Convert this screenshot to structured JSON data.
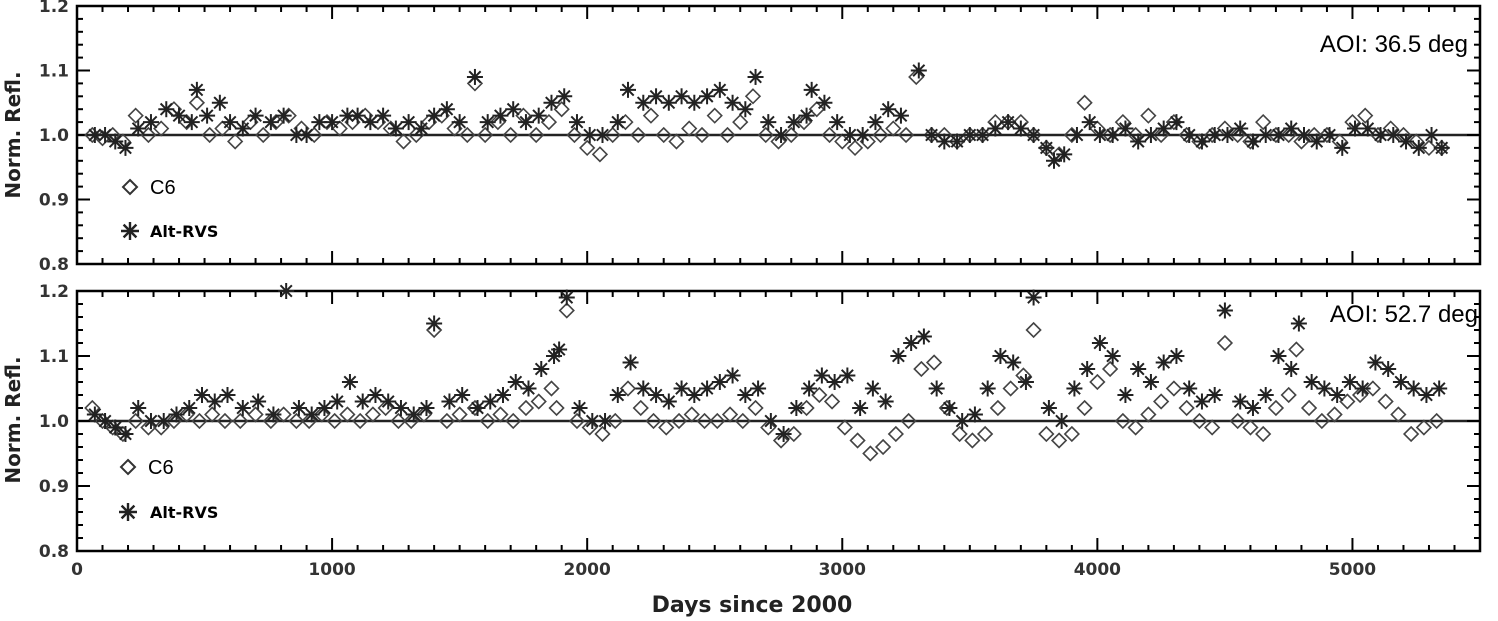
{
  "figure": {
    "shared_xlabel": "Days since 2000"
  },
  "chart_data": [
    {
      "type": "scatter",
      "ylabel": "Norm. Refl.",
      "annotation": "AOI: 36.5 deg",
      "xlim": [
        0,
        5500
      ],
      "ylim": [
        0.8,
        1.2
      ],
      "xticks": [
        0,
        1000,
        2000,
        3000,
        4000,
        5000
      ],
      "yticks": [
        0.8,
        0.9,
        1.0,
        1.1,
        1.2
      ],
      "ytick_labels": [
        "0.8",
        "0.9",
        "1.0",
        "1.1",
        "1.2"
      ],
      "reference_line": 1.0,
      "legend": {
        "placement": "lower-left",
        "entries": [
          "C6",
          "Alt-RVS"
        ]
      },
      "series": [
        {
          "name": "C6",
          "marker": "diamond",
          "x": [
            60,
            100,
            140,
            180,
            230,
            280,
            330,
            380,
            430,
            470,
            520,
            570,
            620,
            680,
            730,
            780,
            830,
            880,
            930,
            980,
            1030,
            1080,
            1130,
            1180,
            1230,
            1280,
            1330,
            1380,
            1430,
            1480,
            1530,
            1560,
            1600,
            1650,
            1700,
            1750,
            1800,
            1850,
            1900,
            1950,
            2000,
            2050,
            2100,
            2150,
            2200,
            2250,
            2300,
            2350,
            2400,
            2450,
            2500,
            2550,
            2600,
            2650,
            2700,
            2750,
            2800,
            2850,
            2900,
            2950,
            3000,
            3050,
            3100,
            3150,
            3200,
            3250,
            3290,
            3350,
            3400,
            3450,
            3500,
            3550,
            3600,
            3650,
            3700,
            3750,
            3800,
            3850,
            3900,
            3950,
            4000,
            4050,
            4100,
            4150,
            4200,
            4250,
            4300,
            4350,
            4400,
            4450,
            4500,
            4550,
            4600,
            4650,
            4700,
            4750,
            4800,
            4850,
            4900,
            4950,
            5000,
            5050,
            5100,
            5150,
            5200,
            5250,
            5300,
            5350
          ],
          "y": [
            1.0,
            0.995,
            1.0,
            0.99,
            1.03,
            1.0,
            1.01,
            1.04,
            1.02,
            1.05,
            1.0,
            1.01,
            0.99,
            1.02,
            1.0,
            1.02,
            1.03,
            1.01,
            1.0,
            1.02,
            1.01,
            1.02,
            1.03,
            1.02,
            1.01,
            0.99,
            1.0,
            1.02,
            1.03,
            1.01,
            1.0,
            1.08,
            1.0,
            1.02,
            1.0,
            1.03,
            1.0,
            1.02,
            1.04,
            1.0,
            0.98,
            0.97,
            1.0,
            1.02,
            1.0,
            1.03,
            1.0,
            0.99,
            1.01,
            1.0,
            1.03,
            1.0,
            1.02,
            1.06,
            1.0,
            0.99,
            1.0,
            1.02,
            1.04,
            1.0,
            0.99,
            0.98,
            0.99,
            1.0,
            1.01,
            1.0,
            1.09,
            1.0,
            1.0,
            0.99,
            1.0,
            1.0,
            1.02,
            1.02,
            1.02,
            1.0,
            0.98,
            0.97,
            1.0,
            1.05,
            1.01,
            1.0,
            1.02,
            1.0,
            1.03,
            1.0,
            1.02,
            1.0,
            0.99,
            1.0,
            1.01,
            1.0,
            0.99,
            1.02,
            1.0,
            1.0,
            0.99,
            1.0,
            1.0,
            0.99,
            1.02,
            1.03,
            1.0,
            1.01,
            1.0,
            0.99,
            0.98,
            0.98
          ]
        },
        {
          "name": "Alt-RVS",
          "marker": "asterisk",
          "x": [
            70,
            110,
            150,
            190,
            240,
            290,
            350,
            400,
            450,
            470,
            510,
            560,
            600,
            650,
            700,
            760,
            810,
            860,
            900,
            950,
            1000,
            1060,
            1100,
            1150,
            1200,
            1250,
            1300,
            1350,
            1400,
            1450,
            1500,
            1560,
            1610,
            1660,
            1710,
            1760,
            1810,
            1860,
            1910,
            1960,
            2010,
            2060,
            2120,
            2160,
            2220,
            2270,
            2320,
            2370,
            2420,
            2470,
            2520,
            2570,
            2620,
            2660,
            2710,
            2760,
            2810,
            2860,
            2880,
            2930,
            2980,
            3030,
            3080,
            3130,
            3180,
            3230,
            3300,
            3350,
            3400,
            3450,
            3500,
            3550,
            3600,
            3650,
            3700,
            3750,
            3800,
            3830,
            3870,
            3920,
            3970,
            4010,
            4060,
            4110,
            4160,
            4210,
            4260,
            4310,
            4360,
            4410,
            4460,
            4510,
            4560,
            4610,
            4660,
            4710,
            4760,
            4810,
            4860,
            4910,
            4960,
            5010,
            5060,
            5110,
            5160,
            5210,
            5260,
            5310,
            5350
          ],
          "y": [
            1.0,
            1.0,
            0.99,
            0.98,
            1.01,
            1.02,
            1.04,
            1.03,
            1.02,
            1.07,
            1.03,
            1.05,
            1.02,
            1.01,
            1.03,
            1.02,
            1.03,
            1.0,
            1.0,
            1.02,
            1.02,
            1.03,
            1.03,
            1.02,
            1.03,
            1.01,
            1.02,
            1.01,
            1.03,
            1.04,
            1.02,
            1.09,
            1.02,
            1.03,
            1.04,
            1.02,
            1.03,
            1.05,
            1.06,
            1.02,
            1.0,
            1.0,
            1.02,
            1.07,
            1.05,
            1.06,
            1.05,
            1.06,
            1.05,
            1.06,
            1.07,
            1.05,
            1.04,
            1.09,
            1.02,
            1.0,
            1.02,
            1.03,
            1.07,
            1.05,
            1.02,
            1.0,
            1.0,
            1.02,
            1.04,
            1.03,
            1.1,
            1.0,
            0.99,
            0.99,
            1.0,
            1.0,
            1.01,
            1.02,
            1.01,
            1.0,
            0.98,
            0.96,
            0.97,
            1.0,
            1.02,
            1.0,
            1.0,
            1.01,
            0.99,
            1.0,
            1.01,
            1.02,
            1.0,
            0.99,
            1.0,
            1.0,
            1.01,
            0.99,
            1.0,
            1.0,
            1.01,
            1.0,
            0.99,
            1.0,
            0.98,
            1.01,
            1.01,
            1.0,
            1.0,
            0.99,
            0.98,
            1.0,
            0.98
          ]
        }
      ]
    },
    {
      "type": "scatter",
      "ylabel": "Norm. Refl.",
      "annotation": "AOI: 52.7 deg",
      "xlim": [
        0,
        5500
      ],
      "ylim": [
        0.8,
        1.2
      ],
      "xticks": [
        0,
        1000,
        2000,
        3000,
        4000,
        5000
      ],
      "xtick_labels": [
        "0",
        "1000",
        "2000",
        "3000",
        "4000",
        "5000"
      ],
      "yticks": [
        0.8,
        0.9,
        1.0,
        1.1,
        1.2
      ],
      "ytick_labels": [
        "0.8",
        "0.9",
        "1.0",
        "1.1",
        "1.2"
      ],
      "reference_line": 1.0,
      "legend": {
        "placement": "lower-left",
        "entries": [
          "C6",
          "Alt-RVS"
        ]
      },
      "series": [
        {
          "name": "C6",
          "marker": "diamond",
          "x": [
            60,
            100,
            140,
            180,
            230,
            280,
            330,
            380,
            430,
            480,
            530,
            580,
            640,
            700,
            760,
            810,
            860,
            910,
            960,
            1010,
            1060,
            1110,
            1160,
            1210,
            1260,
            1310,
            1360,
            1400,
            1450,
            1500,
            1560,
            1610,
            1660,
            1710,
            1760,
            1810,
            1860,
            1880,
            1920,
            1960,
            2010,
            2060,
            2110,
            2160,
            2210,
            2260,
            2310,
            2360,
            2410,
            2460,
            2510,
            2560,
            2610,
            2660,
            2710,
            2760,
            2810,
            2860,
            2910,
            2960,
            3010,
            3060,
            3110,
            3160,
            3210,
            3260,
            3310,
            3360,
            3410,
            3460,
            3510,
            3560,
            3610,
            3660,
            3710,
            3750,
            3800,
            3850,
            3900,
            3950,
            4000,
            4050,
            4100,
            4150,
            4200,
            4250,
            4300,
            4350,
            4400,
            4450,
            4500,
            4550,
            4600,
            4650,
            4700,
            4750,
            4780,
            4830,
            4880,
            4930,
            4980,
            5030,
            5080,
            5130,
            5180,
            5230,
            5280,
            5330
          ],
          "y": [
            1.02,
            1.0,
            0.99,
            0.98,
            1.0,
            0.99,
            0.99,
            1.0,
            1.01,
            1.0,
            1.01,
            1.0,
            1.0,
            1.01,
            1.0,
            1.01,
            1.0,
            1.0,
            1.01,
            1.0,
            1.01,
            1.0,
            1.01,
            1.02,
            1.0,
            1.0,
            1.01,
            1.14,
            1.0,
            1.01,
            1.02,
            1.0,
            1.01,
            1.0,
            1.02,
            1.03,
            1.05,
            1.02,
            1.17,
            1.0,
            0.99,
            0.98,
            1.0,
            1.05,
            1.02,
            1.0,
            0.99,
            1.0,
            1.01,
            1.0,
            1.0,
            1.01,
            1.0,
            1.02,
            0.99,
            0.97,
            0.98,
            1.02,
            1.04,
            1.03,
            0.99,
            0.97,
            0.95,
            0.96,
            0.98,
            1.0,
            1.08,
            1.09,
            1.02,
            0.98,
            0.97,
            0.98,
            1.02,
            1.05,
            1.07,
            1.14,
            0.98,
            0.97,
            0.98,
            1.02,
            1.06,
            1.08,
            1.0,
            0.99,
            1.01,
            1.03,
            1.05,
            1.02,
            1.0,
            0.99,
            1.12,
            1.0,
            0.99,
            0.98,
            1.02,
            1.04,
            1.11,
            1.02,
            1.0,
            1.01,
            1.03,
            1.04,
            1.05,
            1.03,
            1.01,
            0.98,
            0.99,
            1.0
          ]
        },
        {
          "name": "Alt-RVS",
          "marker": "asterisk",
          "x": [
            70,
            110,
            150,
            190,
            240,
            290,
            340,
            390,
            440,
            490,
            540,
            590,
            650,
            710,
            770,
            820,
            870,
            920,
            970,
            1020,
            1070,
            1120,
            1170,
            1220,
            1270,
            1320,
            1370,
            1400,
            1460,
            1510,
            1570,
            1620,
            1670,
            1720,
            1770,
            1820,
            1870,
            1890,
            1920,
            1970,
            2020,
            2070,
            2120,
            2170,
            2220,
            2270,
            2320,
            2370,
            2420,
            2470,
            2520,
            2570,
            2620,
            2670,
            2720,
            2770,
            2820,
            2870,
            2920,
            2970,
            3020,
            3070,
            3120,
            3170,
            3220,
            3270,
            3320,
            3370,
            3420,
            3470,
            3520,
            3570,
            3620,
            3670,
            3720,
            3750,
            3810,
            3860,
            3910,
            3960,
            4010,
            4060,
            4110,
            4160,
            4210,
            4260,
            4310,
            4360,
            4410,
            4460,
            4500,
            4560,
            4610,
            4660,
            4710,
            4760,
            4790,
            4840,
            4890,
            4940,
            4990,
            5040,
            5090,
            5140,
            5190,
            5240,
            5290,
            5340
          ],
          "y": [
            1.01,
            1.0,
            0.99,
            0.98,
            1.02,
            1.0,
            1.0,
            1.01,
            1.02,
            1.04,
            1.03,
            1.04,
            1.02,
            1.03,
            1.01,
            1.2,
            1.02,
            1.01,
            1.02,
            1.03,
            1.06,
            1.03,
            1.04,
            1.03,
            1.02,
            1.01,
            1.02,
            1.15,
            1.03,
            1.04,
            1.02,
            1.03,
            1.04,
            1.06,
            1.05,
            1.08,
            1.1,
            1.11,
            1.19,
            1.02,
            1.0,
            1.0,
            1.04,
            1.09,
            1.05,
            1.04,
            1.03,
            1.05,
            1.04,
            1.05,
            1.06,
            1.07,
            1.04,
            1.05,
            1.0,
            0.98,
            1.02,
            1.05,
            1.07,
            1.06,
            1.07,
            1.02,
            1.05,
            1.03,
            1.1,
            1.12,
            1.13,
            1.05,
            1.02,
            1.0,
            1.01,
            1.05,
            1.1,
            1.09,
            1.06,
            1.19,
            1.02,
            1.0,
            1.05,
            1.08,
            1.12,
            1.1,
            1.04,
            1.08,
            1.06,
            1.09,
            1.1,
            1.05,
            1.03,
            1.04,
            1.17,
            1.03,
            1.02,
            1.04,
            1.1,
            1.08,
            1.15,
            1.06,
            1.05,
            1.04,
            1.06,
            1.05,
            1.09,
            1.08,
            1.06,
            1.05,
            1.04,
            1.05
          ]
        }
      ]
    }
  ]
}
